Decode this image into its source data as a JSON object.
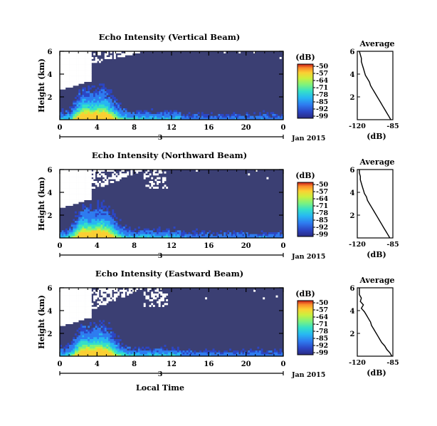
{
  "chart_data": [
    {
      "type": "heatmap",
      "title": "Echo Intensity (Vertical Beam)",
      "xlabel": "",
      "ylabel": "Height (km)",
      "x_ticks": [
        "0",
        "4",
        "8",
        "12",
        "16",
        "20",
        "0"
      ],
      "y_ticks": [
        "2",
        "4",
        "6"
      ],
      "ylim": [
        0,
        6
      ],
      "xlim": [
        0,
        24
      ],
      "date_marker": "3",
      "date_label": "Jan 2015",
      "colorbar": {
        "unit": "(dB)",
        "ticks": [
          "-50",
          "-57",
          "-64",
          "-71",
          "-78",
          "-85",
          "-92",
          "-99"
        ],
        "range": [
          -99,
          -50
        ]
      },
      "profile": {
        "title": "Average",
        "xlabel": "(dB)",
        "x_ticks": [
          "-120",
          "-85"
        ],
        "y_ticks": [
          "2",
          "4",
          "6"
        ],
        "xlim": [
          -120,
          -85
        ],
        "x": [
          -87,
          -89,
          -91,
          -93,
          -95,
          -97,
          -99,
          -101,
          -103,
          -105,
          -107,
          -108,
          -110,
          -112,
          -113,
          -114,
          -115,
          -116,
          -116,
          -117,
          -118
        ],
        "y": [
          0.0,
          0.3,
          0.6,
          0.9,
          1.2,
          1.5,
          1.8,
          2.1,
          2.4,
          2.7,
          3.0,
          3.3,
          3.6,
          3.9,
          4.2,
          4.5,
          4.8,
          5.1,
          5.4,
          5.7,
          6.0
        ]
      }
    },
    {
      "type": "heatmap",
      "title": "Echo Intensity (Northward Beam)",
      "xlabel": "",
      "ylabel": "Height (km)",
      "x_ticks": [
        "0",
        "4",
        "8",
        "12",
        "16",
        "20",
        "0"
      ],
      "y_ticks": [
        "2",
        "4",
        "6"
      ],
      "ylim": [
        0,
        6
      ],
      "xlim": [
        0,
        24
      ],
      "date_marker": "3",
      "date_label": "Jan 2015",
      "colorbar": {
        "unit": "(dB)",
        "ticks": [
          "-50",
          "-57",
          "-64",
          "-71",
          "-78",
          "-85",
          "-92",
          "-99"
        ],
        "range": [
          -99,
          -50
        ]
      },
      "profile": {
        "title": "Average",
        "xlabel": "(dB)",
        "x_ticks": [
          "-120",
          "-85"
        ],
        "y_ticks": [
          "2",
          "4",
          "6"
        ],
        "xlim": [
          -120,
          -85
        ],
        "x": [
          -88,
          -90,
          -92,
          -94,
          -96,
          -98,
          -100,
          -102,
          -104,
          -106,
          -108,
          -110,
          -111,
          -113,
          -114,
          -115,
          -116,
          -117,
          -117,
          -118,
          -118
        ],
        "y": [
          0.0,
          0.3,
          0.6,
          0.9,
          1.2,
          1.5,
          1.8,
          2.1,
          2.4,
          2.7,
          3.0,
          3.3,
          3.6,
          3.9,
          4.2,
          4.5,
          4.8,
          5.1,
          5.4,
          5.7,
          6.0
        ]
      }
    },
    {
      "type": "heatmap",
      "title": "Echo Intensity (Eastward Beam)",
      "xlabel": "Local Time",
      "ylabel": "Height (km)",
      "x_ticks": [
        "0",
        "4",
        "8",
        "12",
        "16",
        "20",
        "0"
      ],
      "y_ticks": [
        "2",
        "4",
        "6"
      ],
      "ylim": [
        0,
        6
      ],
      "xlim": [
        0,
        24
      ],
      "date_marker": "3",
      "date_label": "Jan 2015",
      "colorbar": {
        "unit": "(dB)",
        "ticks": [
          "-50",
          "-57",
          "-64",
          "-71",
          "-78",
          "-85",
          "-92",
          "-99"
        ],
        "range": [
          -99,
          -50
        ]
      },
      "profile": {
        "title": "Average",
        "xlabel": "(dB)",
        "x_ticks": [
          "-120",
          "-85"
        ],
        "y_ticks": [
          "2",
          "4",
          "6"
        ],
        "xlim": [
          -120,
          -85
        ],
        "x": [
          -86,
          -88,
          -91,
          -93,
          -96,
          -98,
          -100,
          -102,
          -104,
          -106,
          -107,
          -109,
          -111,
          -113,
          -116,
          -114,
          -117,
          -116,
          -118,
          -118,
          -118
        ],
        "y": [
          0.0,
          0.3,
          0.6,
          0.9,
          1.2,
          1.5,
          1.8,
          2.1,
          2.4,
          2.7,
          3.0,
          3.3,
          3.6,
          3.9,
          4.2,
          4.5,
          4.8,
          5.1,
          5.4,
          5.7,
          6.0
        ]
      }
    }
  ],
  "colors": {
    "background_field": "#3b3f73",
    "scale": [
      "#2a2a82",
      "#2c46c4",
      "#2e7cf0",
      "#27b8f2",
      "#35e0c8",
      "#7ff27c",
      "#cdef3e",
      "#fbd033",
      "#fb8c2a",
      "#e8402a",
      "#c81a1a"
    ]
  }
}
